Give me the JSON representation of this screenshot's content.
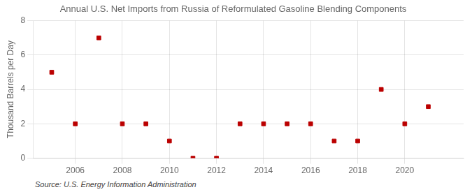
{
  "chart_data": {
    "type": "scatter",
    "title": "Annual U.S. Net Imports from Russia of Reformulated Gasoline Blending Components",
    "y_label": "Thousand Barrels per Day",
    "source": "Source: U.S. Energy Information Administration",
    "x": [
      2005,
      2006,
      2007,
      2008,
      2009,
      2010,
      2011,
      2012,
      2013,
      2014,
      2015,
      2016,
      2017,
      2018,
      2019,
      2020,
      2021
    ],
    "values": [
      5,
      2,
      7,
      2,
      2,
      1,
      0,
      0,
      2,
      2,
      2,
      2,
      1,
      1,
      4,
      2,
      3
    ],
    "xlim": [
      2004.2,
      2022.5
    ],
    "xticks": [
      2006,
      2008,
      2010,
      2012,
      2014,
      2016,
      2018,
      2020
    ],
    "ylim": [
      0,
      8
    ],
    "yticks": [
      0,
      2,
      4,
      6,
      8
    ],
    "color": "#bb0000",
    "marker": "square",
    "grid": true
  }
}
